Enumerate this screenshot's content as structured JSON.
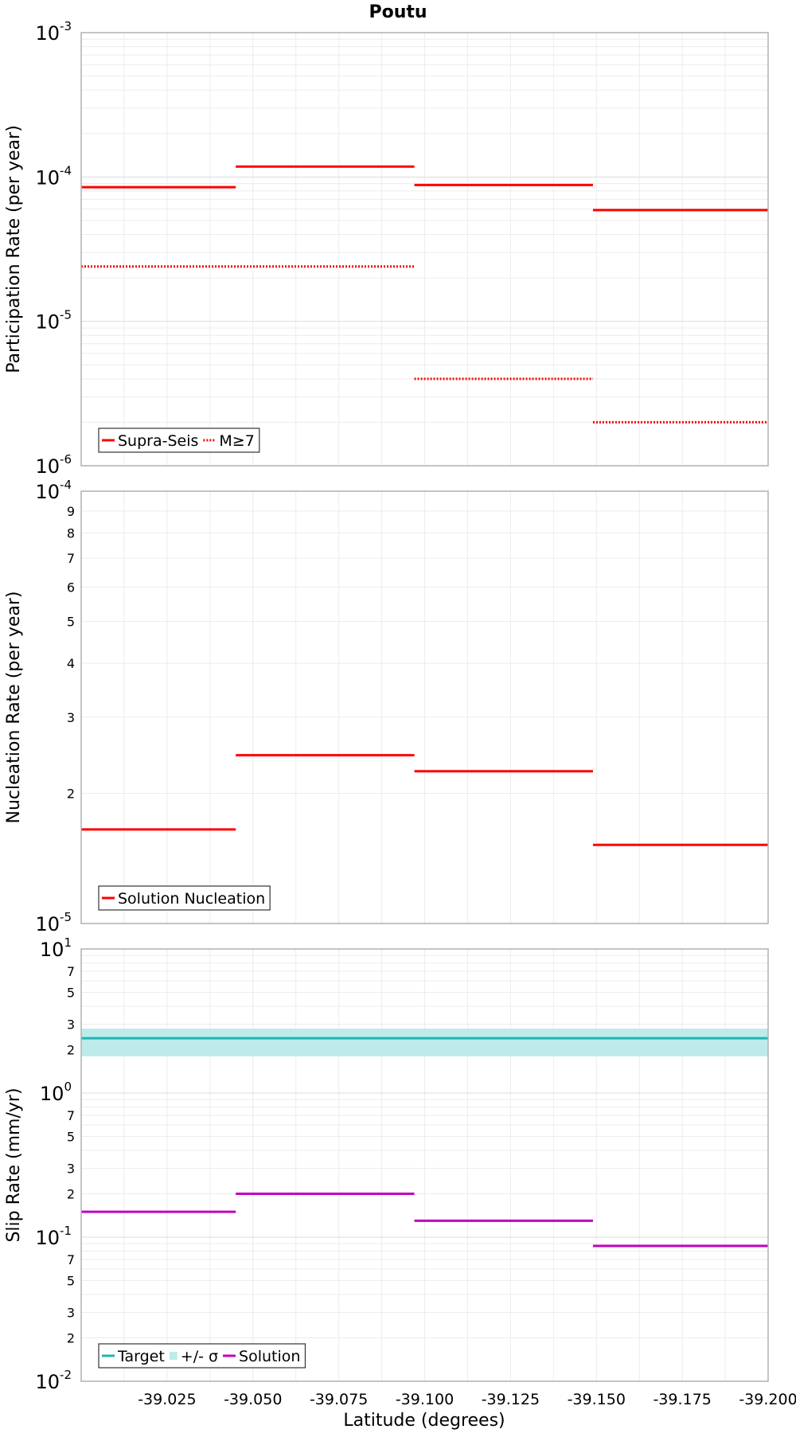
{
  "title": "Poutu",
  "xlabel": "Latitude (degrees)",
  "x_ticks": [
    "-39.025",
    "-39.050",
    "-39.075",
    "-39.100",
    "-39.125",
    "-39.150",
    "-39.175",
    "-39.200"
  ],
  "colors": {
    "supra": "#ff0000",
    "target": "#1fb5ad",
    "band": "#bdebea",
    "solution": "#c000c0",
    "grid": "#ececec",
    "frame": "#b0b0b0"
  },
  "chart_data": [
    {
      "type": "line",
      "ylabel": "Participation Rate (per year)",
      "yscale": "log",
      "ylim": [
        1e-06,
        0.001
      ],
      "xlim": [
        -39.0,
        -39.2
      ],
      "legend": {
        "position": "bottom-left",
        "entries": [
          "Supra-Seis",
          "M≥7"
        ]
      },
      "series": [
        {
          "name": "Supra-Seis",
          "style": "solid",
          "segments": [
            {
              "x": [
                -39.0,
                -39.045
              ],
              "y": 8.5e-05
            },
            {
              "x": [
                -39.045,
                -39.097
              ],
              "y": 0.000118
            },
            {
              "x": [
                -39.097,
                -39.149
              ],
              "y": 8.8e-05
            },
            {
              "x": [
                -39.149,
                -39.2
              ],
              "y": 5.9e-05
            }
          ]
        },
        {
          "name": "M≥7",
          "style": "dotted",
          "segments": [
            {
              "x": [
                -39.0,
                -39.097
              ],
              "y": 2.4e-05
            },
            {
              "x": [
                -39.097,
                -39.149
              ],
              "y": 4e-06
            },
            {
              "x": [
                -39.149,
                -39.2
              ],
              "y": 2e-06
            }
          ]
        }
      ]
    },
    {
      "type": "line",
      "ylabel": "Nucleation Rate (per year)",
      "yscale": "log",
      "ylim": [
        1e-05,
        0.0001
      ],
      "xlim": [
        -39.0,
        -39.2
      ],
      "legend": {
        "position": "bottom-left",
        "entries": [
          "Solution Nucleation"
        ]
      },
      "series": [
        {
          "name": "Solution Nucleation",
          "style": "solid",
          "segments": [
            {
              "x": [
                -39.0,
                -39.045
              ],
              "y": 1.65e-05
            },
            {
              "x": [
                -39.045,
                -39.097
              ],
              "y": 2.45e-05
            },
            {
              "x": [
                -39.097,
                -39.149
              ],
              "y": 2.25e-05
            },
            {
              "x": [
                -39.149,
                -39.2
              ],
              "y": 1.52e-05
            }
          ]
        }
      ]
    },
    {
      "type": "line",
      "ylabel": "Slip Rate (mm/yr)",
      "yscale": "log",
      "ylim": [
        0.01,
        10
      ],
      "xlim": [
        -39.0,
        -39.2
      ],
      "legend": {
        "position": "bottom-left",
        "entries": [
          "Target",
          "+/- σ",
          "Solution"
        ]
      },
      "target": {
        "value": 2.4,
        "band": [
          1.8,
          2.8
        ]
      },
      "series": [
        {
          "name": "Solution",
          "style": "solid",
          "segments": [
            {
              "x": [
                -39.0,
                -39.045
              ],
              "y": 0.15
            },
            {
              "x": [
                -39.045,
                -39.097
              ],
              "y": 0.2
            },
            {
              "x": [
                -39.097,
                -39.149
              ],
              "y": 0.13
            },
            {
              "x": [
                -39.149,
                -39.2
              ],
              "y": 0.087
            }
          ]
        }
      ]
    }
  ]
}
